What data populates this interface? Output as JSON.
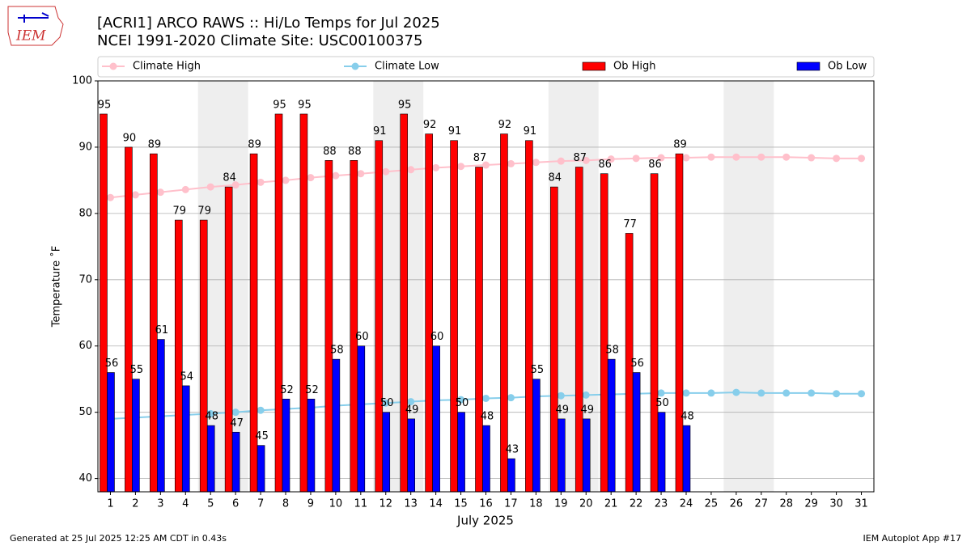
{
  "chart_data": {
    "type": "bar_line",
    "title": "[ACRI1] ARCO RAWS :: Hi/Lo Temps for Jul 2025",
    "subtitle": "NCEI 1991-2020 Climate Site: USC00100375",
    "xlabel": "July 2025",
    "ylabel": "Temperature ˚F",
    "footer_left": "Generated at 25 Jul 2025 12:25 AM CDT in 0.43s",
    "footer_right": "IEM Autoplot App #17",
    "logo_text": "IEM",
    "x": [
      1,
      2,
      3,
      4,
      5,
      6,
      7,
      8,
      9,
      10,
      11,
      12,
      13,
      14,
      15,
      16,
      17,
      18,
      19,
      20,
      21,
      22,
      23,
      24,
      25,
      26,
      27,
      28,
      29,
      30,
      31
    ],
    "xlim": [
      0.5,
      31.5
    ],
    "xticks": [
      1,
      2,
      3,
      4,
      5,
      6,
      7,
      8,
      9,
      10,
      11,
      12,
      13,
      14,
      15,
      16,
      17,
      18,
      19,
      20,
      21,
      22,
      23,
      24,
      25,
      26,
      27,
      28,
      29,
      30,
      31
    ],
    "ylim": [
      38,
      100
    ],
    "yticks": [
      40,
      50,
      60,
      70,
      80,
      90,
      100
    ],
    "grid": "y",
    "legend": "top",
    "shaded_ranges": [
      [
        4.5,
        6.5
      ],
      [
        11.5,
        13.5
      ],
      [
        18.5,
        20.5
      ],
      [
        25.5,
        27.5
      ]
    ],
    "shade_color": "#eeeeee",
    "series": [
      {
        "name": "Climate High",
        "kind": "line",
        "color": "#ffc0cb",
        "values": [
          82.4,
          82.8,
          83.2,
          83.6,
          84.0,
          84.3,
          84.7,
          85.0,
          85.4,
          85.7,
          86.0,
          86.3,
          86.6,
          86.9,
          87.1,
          87.3,
          87.5,
          87.7,
          87.9,
          88.0,
          88.2,
          88.3,
          88.4,
          88.4,
          88.5,
          88.5,
          88.5,
          88.5,
          88.4,
          88.3,
          88.3
        ]
      },
      {
        "name": "Climate Low",
        "kind": "line",
        "color": "#87ceeb",
        "values": [
          49.0,
          49.2,
          49.4,
          49.6,
          49.8,
          50.0,
          50.3,
          50.5,
          50.7,
          51.0,
          51.2,
          51.4,
          51.6,
          51.8,
          51.9,
          52.1,
          52.2,
          52.4,
          52.5,
          52.6,
          52.7,
          52.8,
          52.9,
          52.9,
          52.9,
          53.0,
          52.9,
          52.9,
          52.9,
          52.8,
          52.8
        ]
      },
      {
        "name": "Ob High",
        "kind": "bar",
        "color": "#ff0000",
        "values": [
          95,
          90,
          89,
          79,
          79,
          84,
          89,
          95,
          95,
          88,
          88,
          91,
          95,
          92,
          91,
          87,
          92,
          91,
          84,
          87,
          86,
          77,
          86,
          89,
          null,
          null,
          null,
          null,
          null,
          null,
          null
        ]
      },
      {
        "name": "Ob Low",
        "kind": "bar",
        "color": "#0000ff",
        "values": [
          56,
          55,
          61,
          54,
          48,
          47,
          45,
          52,
          52,
          58,
          60,
          50,
          49,
          60,
          50,
          48,
          43,
          55,
          49,
          49,
          58,
          56,
          50,
          48,
          null,
          null,
          null,
          null,
          null,
          null,
          null
        ]
      }
    ]
  }
}
